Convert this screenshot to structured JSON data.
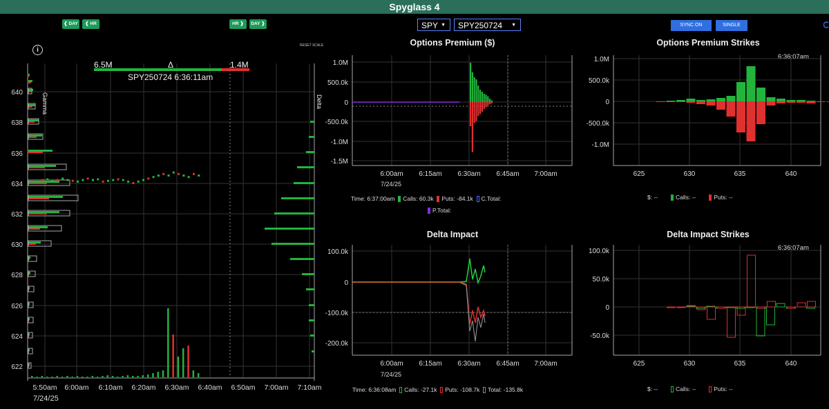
{
  "app": {
    "title": "Spyglass 4"
  },
  "header": {
    "left_pills": [
      "❰ DAY",
      "❰ HR"
    ],
    "right_pills": [
      "HR ❱",
      "DAY ❱"
    ],
    "symbol_select": "SPY",
    "expiry_select": "SPY250724",
    "sync_button": "SYNC ON",
    "single_button": "SINGLE",
    "reset_scale": "RESET SCALE"
  },
  "main_chart": {
    "info_icon": "i",
    "call_total": "6.5M",
    "delta_symbol": "Δ",
    "put_total": "1.4M",
    "caption": "SPY250724 6:36:11am",
    "gamma_label": "Gamma",
    "delta_label": "Delta",
    "x_ticks": [
      "5:50am",
      "6:00am",
      "6:10am",
      "6:20am",
      "6:30am",
      "6:40am",
      "6:50am",
      "7:00am",
      "7:10am"
    ],
    "x_date": "7/24/25",
    "y_ticks": [
      "640",
      "638",
      "636",
      "634",
      "632",
      "630",
      "628",
      "626",
      "624",
      "622"
    ],
    "candles": [
      634.2,
      634.25,
      634.1,
      634.2,
      634.3,
      634.2,
      634.15,
      634.1,
      634.2,
      634.3,
      634.2,
      634.25,
      634.1,
      634.15,
      634.2,
      634.25,
      634.2,
      634.1,
      634.0,
      634.1,
      634.2,
      634.3,
      634.4,
      634.5,
      634.6,
      634.5,
      634.7,
      634.6,
      634.5,
      634.4,
      634.6,
      634.5
    ]
  },
  "options_premium": {
    "title": "Options Premium ($)",
    "y_ticks": [
      "1.0M",
      "500.0k",
      "0",
      "-500.0k",
      "-1.0M",
      "-1.5M"
    ],
    "x_ticks": [
      "6:00am",
      "6:15am",
      "6:30am",
      "6:45am",
      "7:00am"
    ],
    "x_date": "7/24/25",
    "legend": {
      "time_label": "Time:",
      "time": "6:37:00am",
      "calls_label": "Calls:",
      "calls": "60.3k",
      "puts_label": "Puts:",
      "puts": "-84.1k",
      "ctotal_label": "C.Total:",
      "ptotal_label": "P.Total:"
    }
  },
  "premium_strikes": {
    "title": "Options Premium Strikes",
    "timestamp": "6:36:07am",
    "y_ticks": [
      "1.0M",
      "500.0k",
      "0",
      "-500.0k",
      "-1.0M"
    ],
    "x_ticks": [
      "625",
      "630",
      "635",
      "640"
    ],
    "legend": {
      "dollar_label": "$:",
      "dollar": "--",
      "calls_label": "Calls:",
      "calls": "--",
      "puts_label": "Puts:",
      "puts": "--"
    }
  },
  "delta_impact": {
    "title": "Delta Impact",
    "y_ticks": [
      "100.0k",
      "0",
      "-100.0k",
      "-200.0k"
    ],
    "x_ticks": [
      "6:00am",
      "6:15am",
      "6:30am",
      "6:45am",
      "7:00am"
    ],
    "x_date": "7/24/25",
    "legend": {
      "time_label": "Time:",
      "time": "6:36:08am",
      "calls_label": "Calls:",
      "calls": "-27.1k",
      "puts_label": "Puts:",
      "puts": "-108.7k",
      "total_label": "Total:",
      "total": "-135.8k"
    }
  },
  "delta_strikes": {
    "title": "Delta Impact Strikes",
    "timestamp": "6:36:07am",
    "y_ticks": [
      "100.0k",
      "50.0k",
      "0",
      "-50.0k"
    ],
    "x_ticks": [
      "625",
      "630",
      "635",
      "640"
    ],
    "legend": {
      "dollar_label": "$:",
      "dollar": "--",
      "calls_label": "Calls:",
      "calls": "--",
      "puts_label": "Puts:",
      "puts": "--"
    }
  },
  "colors": {
    "call": "#22b43c",
    "put": "#e03030",
    "accent": "#2b6f5a",
    "button": "#2f6fe0"
  }
}
